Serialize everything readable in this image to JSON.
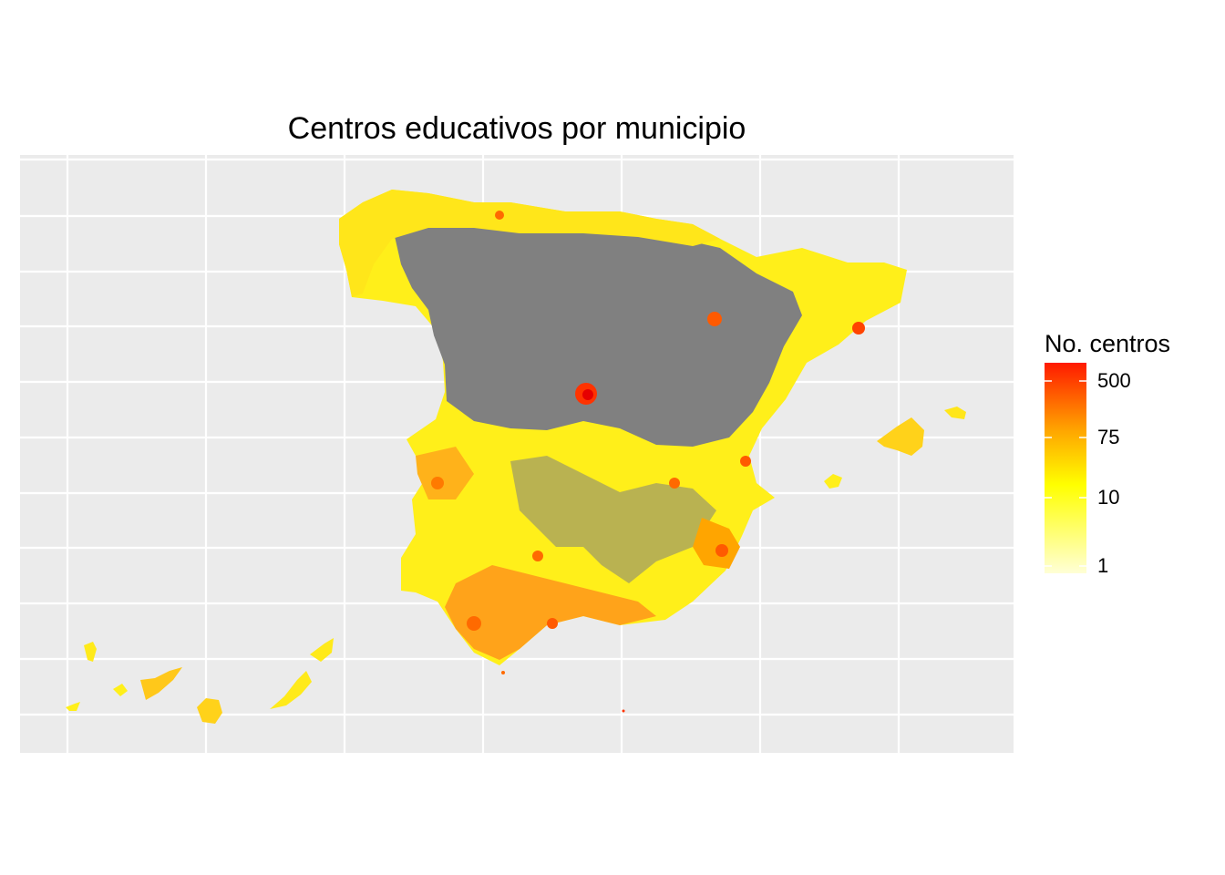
{
  "title": "Centros educativos por municipio",
  "legend": {
    "title": "No. centros",
    "scale": "log",
    "breaks": [
      {
        "value": 500,
        "label": "500"
      },
      {
        "value": 75,
        "label": "75"
      },
      {
        "value": 10,
        "label": "10"
      },
      {
        "value": 1,
        "label": "1"
      }
    ],
    "range": [
      1,
      1000
    ],
    "colors": {
      "low": "#ffffd6",
      "mid1": "#ffff00",
      "mid2": "#ffa500",
      "high": "#ff1a00"
    }
  },
  "map": {
    "panel_background": "#ebebeb",
    "gridline_color": "#ffffff",
    "no_data_color": "#808080",
    "regions": [
      "Peninsula",
      "Baleares",
      "Canarias",
      "Ceuta",
      "Melilla"
    ]
  }
}
